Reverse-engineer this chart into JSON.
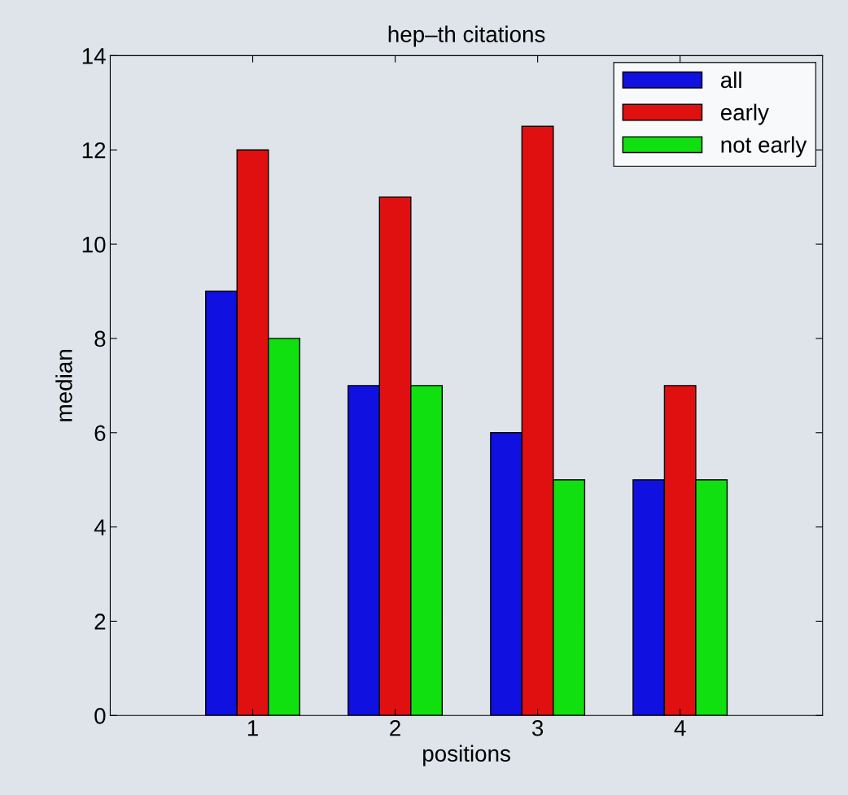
{
  "chart_data": {
    "type": "bar",
    "title": "hep–th citations",
    "xlabel": "positions",
    "ylabel": "median",
    "x": [
      1,
      2,
      3,
      4
    ],
    "xlim": [
      0,
      5
    ],
    "xticks": [
      1,
      2,
      3,
      4
    ],
    "ylim": [
      0,
      14
    ],
    "yticks": [
      0,
      2,
      4,
      6,
      8,
      10,
      12,
      14
    ],
    "series": [
      {
        "name": "all",
        "color": "#1010e0",
        "values": [
          9,
          7,
          6,
          5
        ]
      },
      {
        "name": "early",
        "color": "#e01010",
        "values": [
          12,
          11,
          12.5,
          7
        ]
      },
      {
        "name": "not early",
        "color": "#10e010",
        "values": [
          8,
          7,
          5,
          5
        ]
      }
    ],
    "grid": false,
    "legend": "top right"
  }
}
